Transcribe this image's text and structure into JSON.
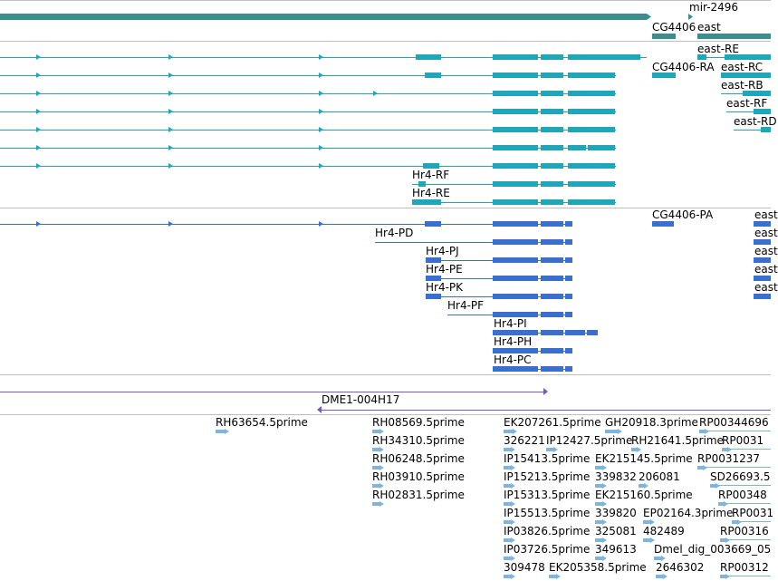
{
  "colors": {
    "gene": "#3a8f8e",
    "transcript_teal": "#1fa6b8",
    "transcript_blue": "#3a6fcf",
    "clone": "#7a5ab8",
    "est": "#7fb4dc",
    "separator": "#bfbfbf"
  },
  "gene_track": {
    "labels": [
      "mir-2496",
      "CG4406",
      "east"
    ]
  },
  "transcript_track_1": {
    "labels": [
      "east-RE",
      "CG4406-RA",
      "east-RC",
      "east-RB",
      "east-RF",
      "east-RD",
      "Hr4-RF",
      "Hr4-RE"
    ]
  },
  "transcript_track_2": {
    "labels": [
      "CG4406-PA",
      "east",
      "east",
      "east",
      "east",
      "east",
      "Hr4-PD",
      "Hr4-PJ",
      "Hr4-PE",
      "Hr4-PK",
      "Hr4-PF",
      "Hr4-PI",
      "Hr4-PH",
      "Hr4-PC"
    ]
  },
  "clone_track": {
    "labels": [
      "DME1-004H17"
    ]
  },
  "est_track": {
    "labels": [
      "RH63654.5prime",
      "RH08569.5prime",
      "EK207261.5prime",
      "GH20918.3prime",
      "RP00344696",
      "RH34310.5prime",
      "326221",
      "IP12427.5prime",
      "RH21641.5prime",
      "RP0031",
      "RH06248.5prime",
      "IP15413.5prime",
      "EK215145.5prime",
      "RP0031237",
      "RH03910.5prime",
      "IP15213.5prime",
      "339832",
      "206081",
      "SD26693.5",
      "RH02831.5prime",
      "IP15313.5prime",
      "EK215160.5prime",
      "RP00348",
      "IP15513.5prime",
      "339820",
      "EP02164.3prime",
      "RP0031",
      "IP03826.5prime",
      "325081",
      "482489",
      "RP00316",
      "IP03726.5prime",
      "349613",
      "Dmel_dig_003669_05",
      "309478",
      "EK205358.5prime",
      "2646302",
      "RP00312"
    ]
  }
}
